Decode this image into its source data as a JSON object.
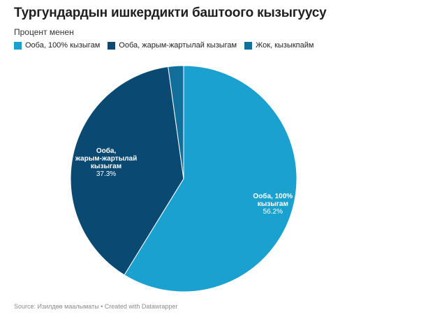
{
  "header": {
    "title": "Тургундардын ишкердикти баштоого кызыгуусу",
    "subtitle": "Процент менен"
  },
  "footer": {
    "source": "Source: Изилдөө маалыматы • Created with Datawrapper"
  },
  "colors": {
    "slice_1": "#1aa1d0",
    "slice_2": "#0a4a72",
    "slice_3": "#126f99",
    "label_text": "#ffffff"
  },
  "chart_data": {
    "type": "pie",
    "title": "Тургундардын ишкердикти баштоого кызыгуусу",
    "subtitle": "Процент менен",
    "legend_position": "top-left",
    "slices": [
      {
        "name": "Ооба, 100% кызыгам",
        "label_lines": [
          "Ооба, 100%",
          "кызыгам"
        ],
        "value": 56.2,
        "value_label": "56.2%"
      },
      {
        "name": "Ооба, жарым-жартылай кызыгам",
        "label_lines": [
          "Ооба,",
          "жарым-жартылай",
          "кызыгам"
        ],
        "value": 37.3,
        "value_label": "37.3%"
      },
      {
        "name": "Жок, кызыкпайм",
        "label_lines": [],
        "value": 2.1,
        "value_label": ""
      }
    ]
  }
}
